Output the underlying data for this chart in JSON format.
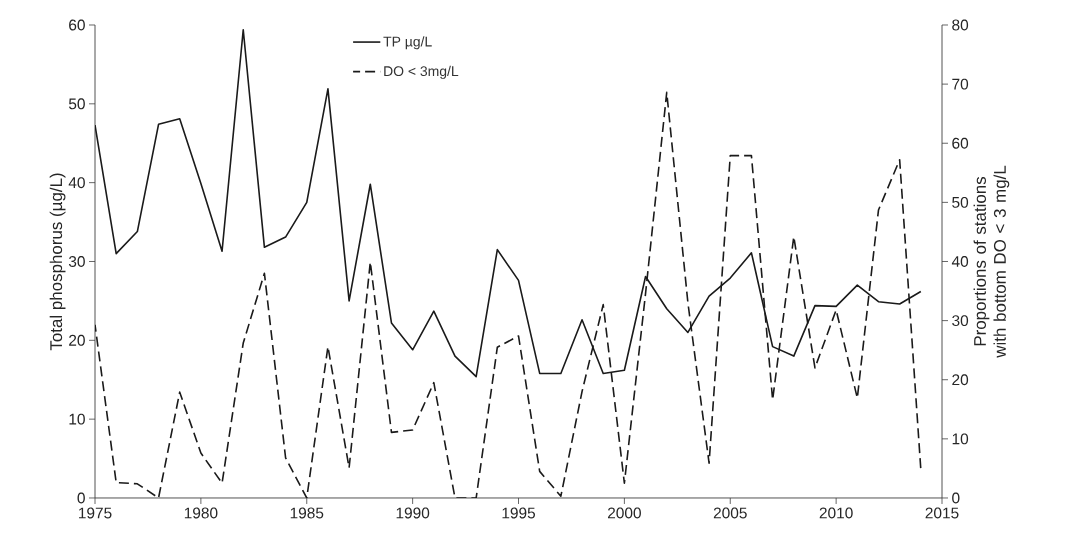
{
  "chart_data": {
    "type": "line",
    "x": [
      1975,
      1976,
      1977,
      1978,
      1979,
      1980,
      1981,
      1982,
      1983,
      1984,
      1985,
      1986,
      1987,
      1988,
      1989,
      1990,
      1991,
      1992,
      1993,
      1994,
      1995,
      1996,
      1997,
      1998,
      1999,
      2000,
      2001,
      2002,
      2003,
      2004,
      2005,
      2006,
      2007,
      2008,
      2009,
      2010,
      2011,
      2012,
      2013,
      2014
    ],
    "series": [
      {
        "name": "TP µg/L",
        "color": "#1a1a1a",
        "line_style": "solid",
        "values": [
          47.3,
          31,
          33.8,
          47.4,
          48.1,
          39.9,
          31.3,
          59.4,
          31.8,
          33.1,
          37.5,
          51.9,
          25,
          39.8,
          22.2,
          18.8,
          23.7,
          18,
          15.4,
          31.5,
          27.6,
          15.8,
          15.8,
          22.6,
          15.8,
          16.2,
          28.1,
          24,
          21,
          25.6,
          27.9,
          31.1,
          19.2,
          18,
          24.4,
          24.3,
          27,
          24.9,
          24.6,
          26.2
        ]
      },
      {
        "name": "DO < 3mg/L",
        "color": "#1a1a1a",
        "line_style": "dashed",
        "axis": "y2",
        "values": [
          29.3,
          2.6,
          2.4,
          0,
          17.9,
          7.6,
          2.5,
          26.2,
          38,
          6.8,
          0,
          25.6,
          5.1,
          39.9,
          11.1,
          11.5,
          19.5,
          0,
          0,
          25.5,
          27.4,
          4.5,
          0.3,
          18,
          32.7,
          2.5,
          34.6,
          68.6,
          33,
          5.9,
          57.9,
          57.9,
          16.6,
          44.2,
          22,
          31.8,
          16.9,
          48.7,
          57.2,
          4.8
        ]
      }
    ],
    "ylabel": "Total phosphorus (µg/L)",
    "y2label": "Proportions of stations with bottom DO < 3 mg/L",
    "xlim": [
      1975,
      2015
    ],
    "xticks": [
      1975,
      1980,
      1985,
      1990,
      1995,
      2000,
      2005,
      2010,
      2015
    ],
    "ylim": [
      0,
      60
    ],
    "yticks": [
      0,
      10,
      20,
      30,
      40,
      50,
      60
    ],
    "y2lim": [
      0,
      80
    ],
    "y2ticks": [
      0,
      10,
      20,
      30,
      40,
      50,
      60,
      70,
      80
    ],
    "grid": false,
    "legend": "top",
    "marker": "none"
  }
}
